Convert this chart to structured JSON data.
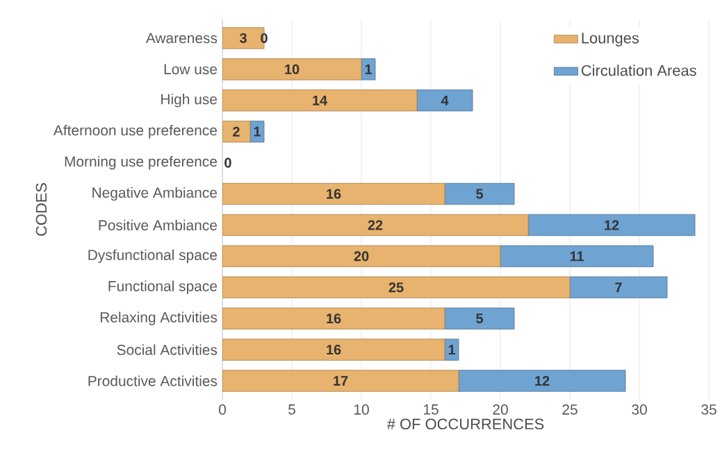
{
  "chart_data": {
    "type": "bar",
    "orientation": "horizontal",
    "stacked": true,
    "xlabel": "# OF OCCURRENCES",
    "ylabel": "CODES",
    "categories": [
      "Awareness",
      "Low use",
      "High use",
      "Afternoon use preference",
      "Morning use preference",
      "Negative Ambiance",
      "Positive Ambiance",
      "Dysfunctional space",
      "Functional space",
      "Relaxing Activities",
      "Social Activities",
      "Productive Activities"
    ],
    "series": [
      {
        "name": "Lounges",
        "color": "#e8b36e",
        "values": [
          3,
          10,
          14,
          2,
          0,
          16,
          22,
          20,
          25,
          16,
          16,
          17
        ],
        "value_labels": [
          "3",
          "10",
          "14",
          "2",
          "0",
          "16",
          "22",
          "20",
          "25",
          "16",
          "16",
          "17"
        ]
      },
      {
        "name": "Circulation Areas",
        "color": "#6fa3d2",
        "values": [
          0,
          1,
          4,
          1,
          0,
          5,
          12,
          11,
          7,
          5,
          1,
          12
        ],
        "value_labels": [
          "0",
          "1",
          "4",
          "1",
          null,
          "5",
          "12",
          "11",
          "7",
          "5",
          "1",
          "12"
        ]
      }
    ],
    "xlim": [
      0,
      35
    ],
    "xticks": [
      0,
      5,
      10,
      15,
      20,
      25,
      30,
      35
    ],
    "grid": "x",
    "legend": "top right"
  }
}
